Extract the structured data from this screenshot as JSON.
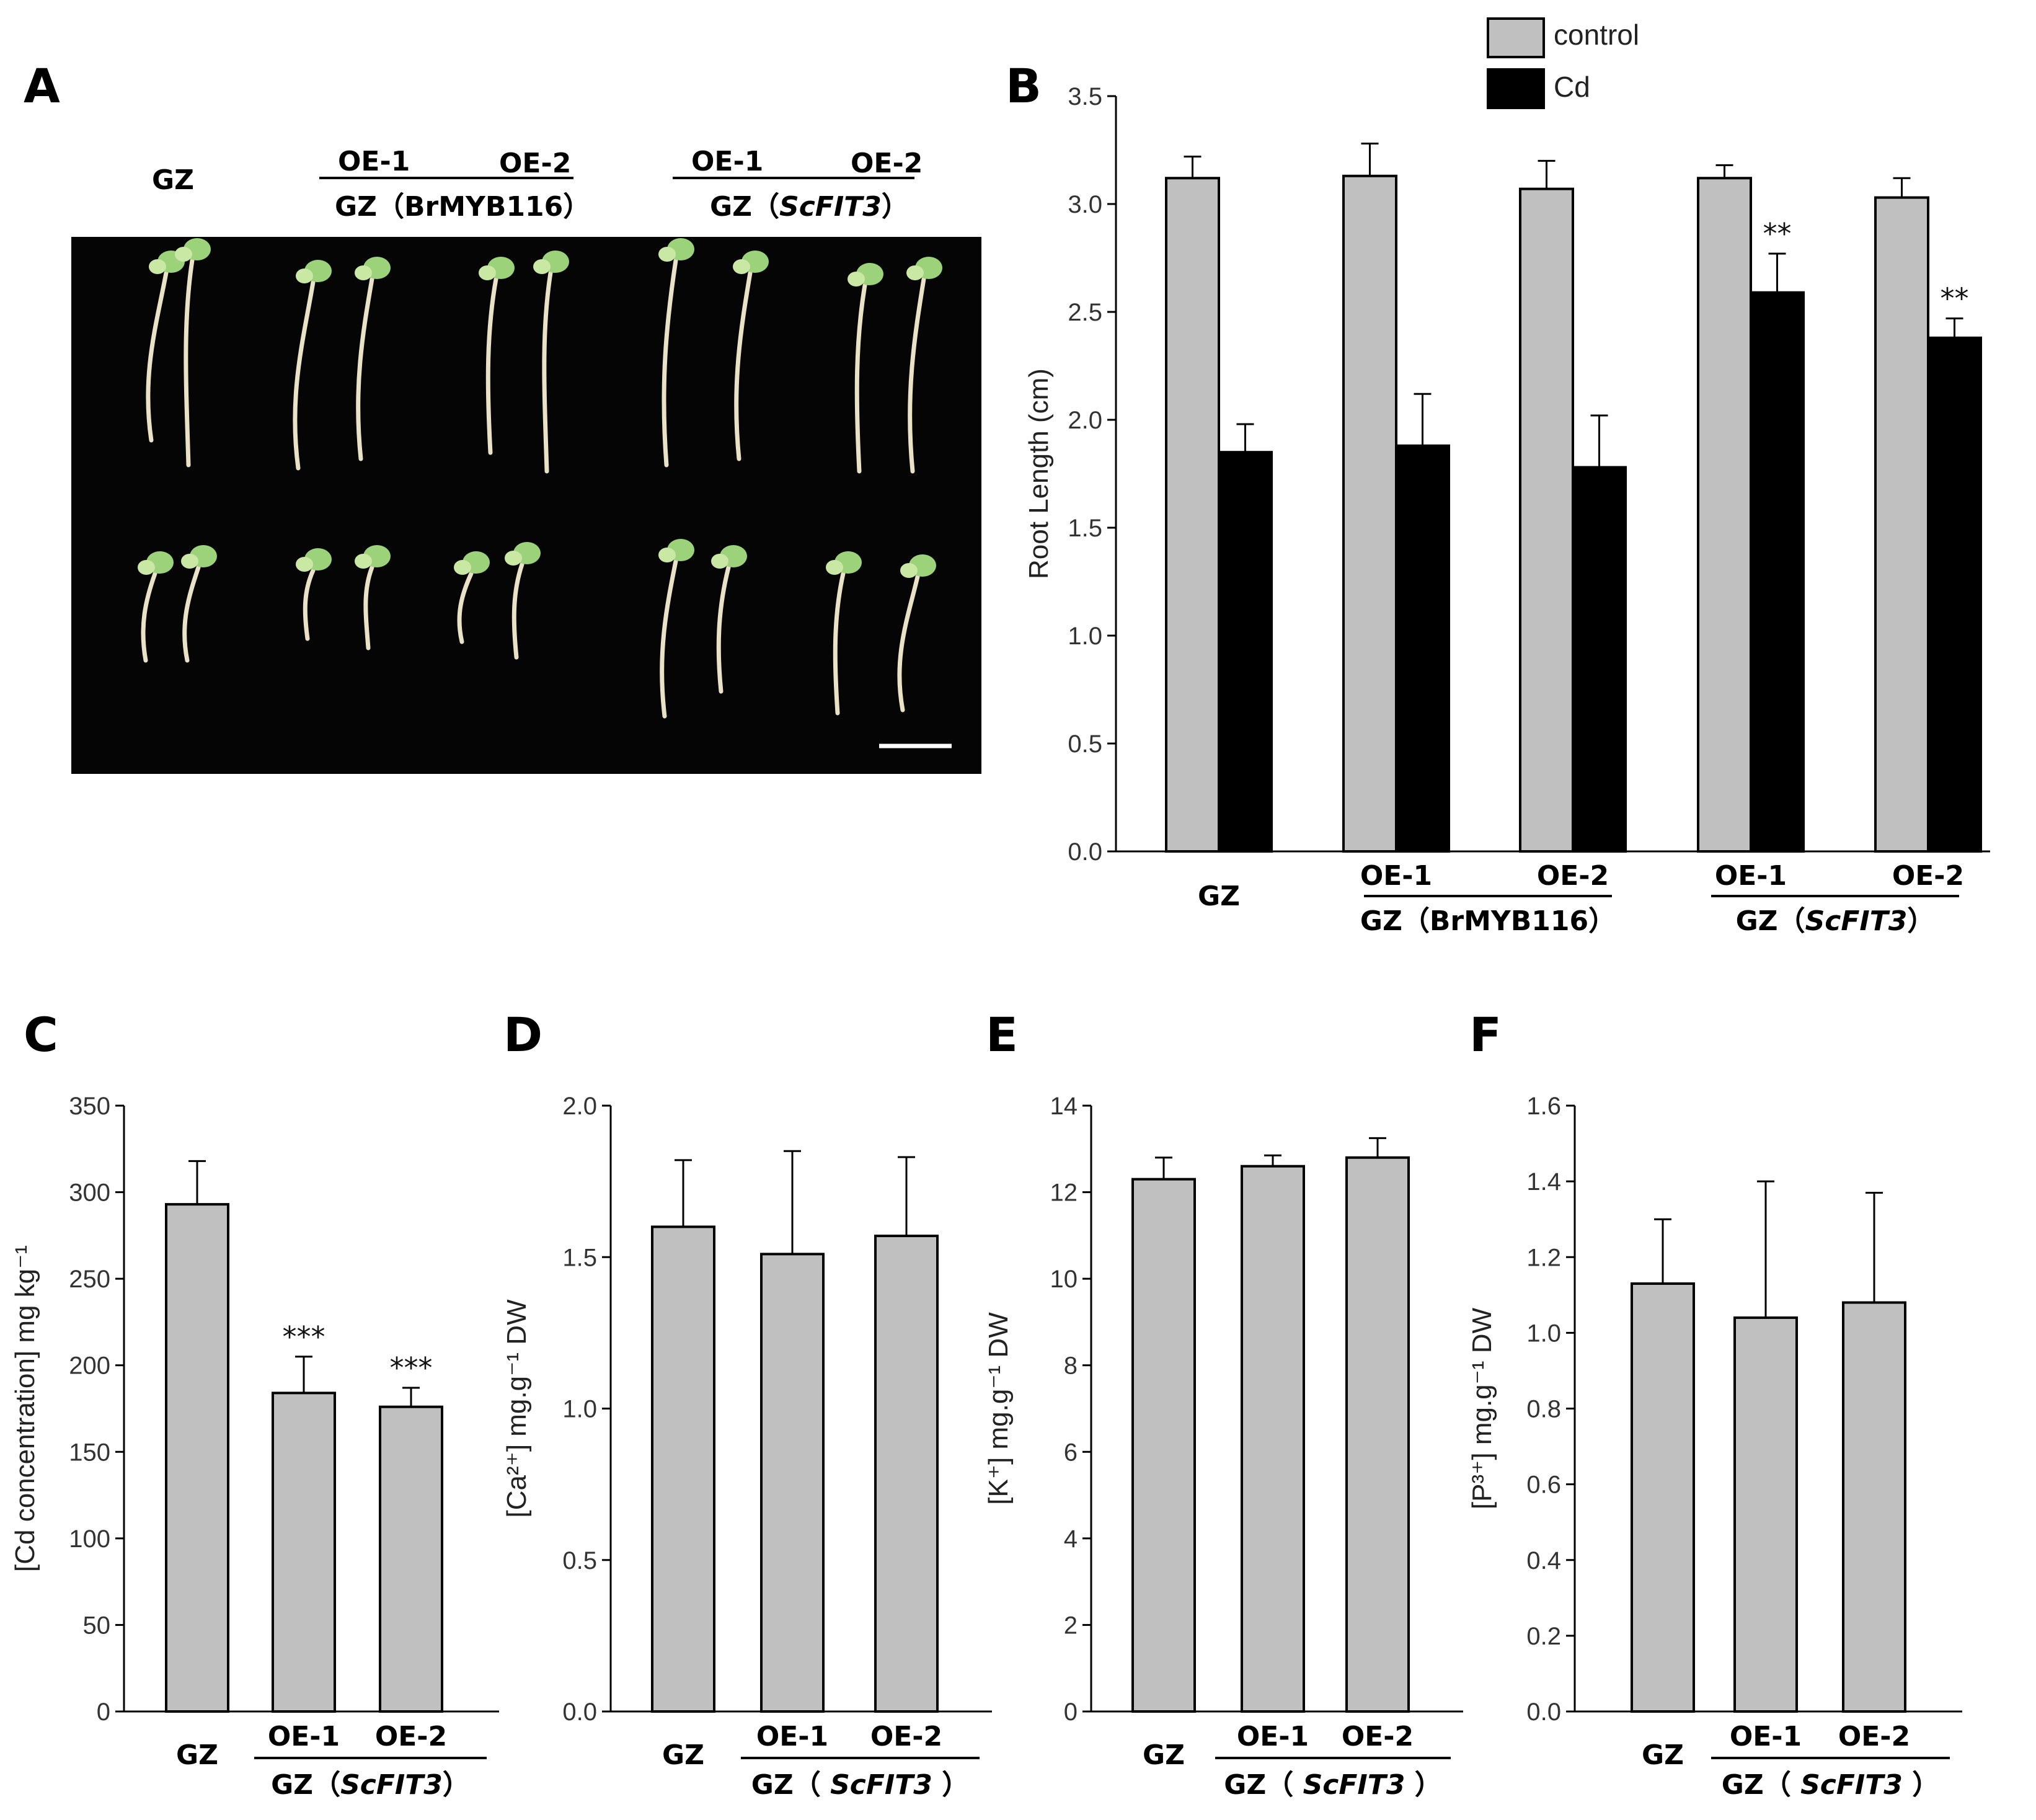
{
  "figure": {
    "panel_A": {
      "letter": "A",
      "group_labels": [
        "GZ",
        "OE-1",
        "OE-2",
        "GZ（BrMYB116）",
        "OE-1",
        "OE-2",
        "GZ（",
        "ScFIT3",
        "）"
      ]
    }
  },
  "chart_data": [
    {
      "panel": "B",
      "type": "bar",
      "categories": [
        "GZ",
        "OE-1",
        "OE-2",
        "OE-1",
        "OE-2"
      ],
      "group_labels": [
        "GZ（BrMYB116）",
        "GZ（",
        "ScFIT3",
        "）"
      ],
      "ylabel": "Root Length (cm)",
      "ylim": [
        0,
        3.5
      ],
      "yticks": [
        "0.0",
        "0.5",
        "1.0",
        "1.5",
        "2.0",
        "2.5",
        "3.0",
        "3.5"
      ],
      "legend": {
        "position": "top-right",
        "entries": [
          "control",
          "Cd"
        ]
      },
      "series": [
        {
          "name": "control",
          "color": "#c0c0c0",
          "values": [
            3.12,
            3.13,
            3.07,
            3.12,
            3.03
          ],
          "errors": [
            0.1,
            0.15,
            0.13,
            0.06,
            0.09
          ]
        },
        {
          "name": "Cd",
          "color": "#000000",
          "values": [
            1.85,
            1.88,
            1.78,
            2.59,
            2.38
          ],
          "errors": [
            0.13,
            0.24,
            0.24,
            0.18,
            0.09
          ]
        }
      ],
      "annotations": [
        "",
        "",
        "",
        "**",
        "**"
      ]
    },
    {
      "panel": "C",
      "type": "bar",
      "categories": [
        "GZ",
        "OE-1",
        "OE-2"
      ],
      "group_labels": [
        "GZ（",
        "ScFIT3",
        "）"
      ],
      "ylabel": "[Cd concentration] mg kg⁻¹",
      "ylim": [
        0,
        350
      ],
      "yticks": [
        "0",
        "50",
        "100",
        "150",
        "200",
        "250",
        "300",
        "350"
      ],
      "values": [
        293,
        184,
        176
      ],
      "errors": [
        25,
        21,
        11
      ],
      "annotations": [
        "",
        "***",
        "***"
      ],
      "color": "#c0c0c0"
    },
    {
      "panel": "D",
      "type": "bar",
      "categories": [
        "GZ",
        "OE-1",
        "OE-2"
      ],
      "group_labels": [
        "GZ（ ",
        "ScFIT3",
        " ）"
      ],
      "ylabel": "[Ca²⁺] mg.g⁻¹ DW",
      "ylim": [
        0,
        2.0
      ],
      "yticks": [
        "0.0",
        "0.5",
        "1.0",
        "1.5",
        "2.0"
      ],
      "values": [
        1.6,
        1.51,
        1.57
      ],
      "errors": [
        0.22,
        0.34,
        0.26
      ],
      "color": "#c0c0c0"
    },
    {
      "panel": "E",
      "type": "bar",
      "categories": [
        "GZ",
        "OE-1",
        "OE-2"
      ],
      "group_labels": [
        "GZ（ ",
        "ScFIT3",
        " ）"
      ],
      "ylabel": "[K⁺] mg.g⁻¹ DW",
      "ylim": [
        0,
        14
      ],
      "yticks": [
        "0",
        "2",
        "4",
        "6",
        "8",
        "10",
        "12",
        "14"
      ],
      "values": [
        12.3,
        12.6,
        12.8
      ],
      "errors": [
        0.5,
        0.25,
        0.45
      ],
      "color": "#c0c0c0"
    },
    {
      "panel": "F",
      "type": "bar",
      "categories": [
        "GZ",
        "OE-1",
        "OE-2"
      ],
      "group_labels": [
        "GZ（ ",
        "ScFIT3",
        " ）"
      ],
      "ylabel": "[P³⁺] mg.g⁻¹ DW",
      "ylim": [
        0,
        1.6
      ],
      "yticks": [
        "0.0",
        "0.2",
        "0.4",
        "0.6",
        "0.8",
        "1.0",
        "1.2",
        "1.4",
        "1.6"
      ],
      "values": [
        1.13,
        1.04,
        1.08
      ],
      "errors": [
        0.17,
        0.36,
        0.29
      ],
      "color": "#c0c0c0"
    }
  ]
}
